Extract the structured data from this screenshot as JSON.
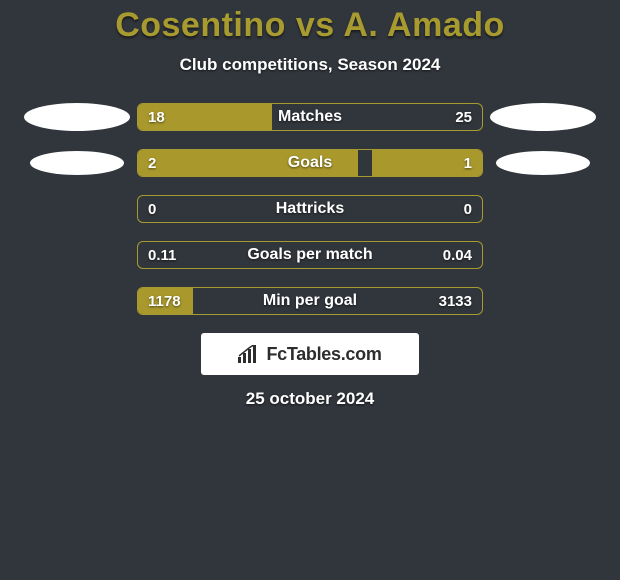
{
  "title": "Cosentino vs A. Amado",
  "subtitle": "Club competitions, Season 2024",
  "footer_date": "25 october 2024",
  "logo_text": "FcTables.com",
  "colors": {
    "background": "#31363c",
    "accent": "#a9992c",
    "accent_border": "#a79a2f",
    "title": "#a79a2f",
    "text": "#ffffff",
    "oval": "#ffffff",
    "logo_bg": "#ffffff",
    "logo_text": "#2d2d2d"
  },
  "ovals": [
    {
      "width": 106,
      "height": 28
    },
    {
      "width": 94,
      "height": 24
    }
  ],
  "bars": [
    {
      "label": "Matches",
      "left_value": "18",
      "right_value": "25",
      "left_fill_pct": 39,
      "right_fill_pct": 0,
      "show_left_oval": true,
      "show_right_oval": true,
      "oval_index": 0
    },
    {
      "label": "Goals",
      "left_value": "2",
      "right_value": "1",
      "left_fill_pct": 64,
      "right_fill_pct": 32,
      "show_left_oval": true,
      "show_right_oval": true,
      "oval_index": 1
    },
    {
      "label": "Hattricks",
      "left_value": "0",
      "right_value": "0",
      "left_fill_pct": 0,
      "right_fill_pct": 0,
      "show_left_oval": false,
      "show_right_oval": false
    },
    {
      "label": "Goals per match",
      "left_value": "0.11",
      "right_value": "0.04",
      "left_fill_pct": 0,
      "right_fill_pct": 0,
      "show_left_oval": false,
      "show_right_oval": false
    },
    {
      "label": "Min per goal",
      "left_value": "1178",
      "right_value": "3133",
      "left_fill_pct": 16,
      "right_fill_pct": 0,
      "show_left_oval": false,
      "show_right_oval": false
    }
  ]
}
